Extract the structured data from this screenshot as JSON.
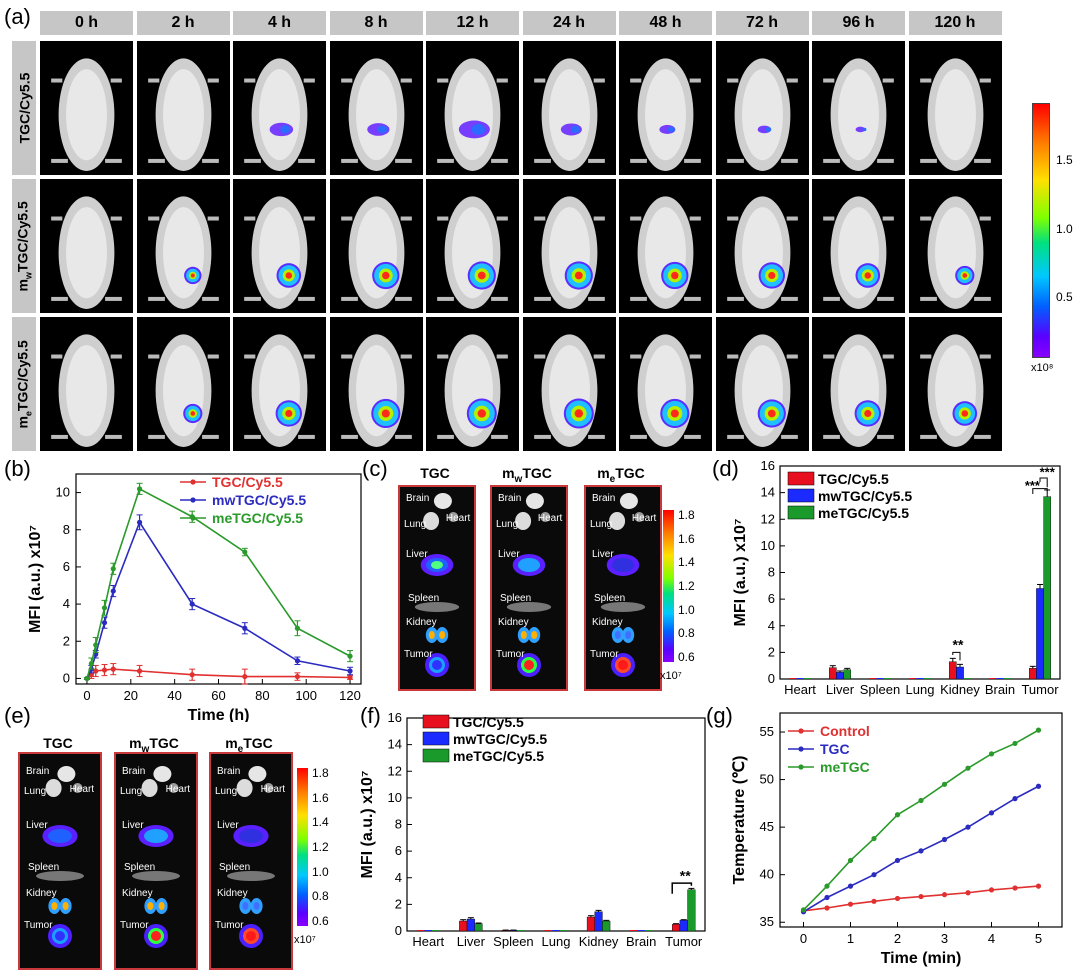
{
  "panel_a": {
    "label": "(a)",
    "times": [
      "0 h",
      "2 h",
      "4 h",
      "8 h",
      "12 h",
      "24 h",
      "48 h",
      "72 h",
      "96 h",
      "120 h"
    ],
    "rows": [
      {
        "label": "TGC/Cy5.5",
        "signal": [
          0,
          0,
          0.6,
          0.55,
          0.9,
          0.5,
          0.3,
          0.2,
          0.05,
          0
        ],
        "color": "#6a2cff"
      },
      {
        "label": "mwTGC/Cy5.5",
        "signal": [
          0,
          0.3,
          0.7,
          0.85,
          0.9,
          0.9,
          0.85,
          0.8,
          0.7,
          0.4
        ],
        "color": "#ff2a1a"
      },
      {
        "label": "meTGC/Cy5.5",
        "signal": [
          0,
          0.4,
          0.8,
          0.95,
          1,
          1,
          0.95,
          0.9,
          0.8,
          0.7
        ],
        "color": "#ff2a1a"
      }
    ],
    "colorbar": {
      "ticks": [
        "1.5",
        "1.0",
        "0.5"
      ],
      "unit": "x10⁸"
    }
  },
  "panel_b": {
    "label": "(b)",
    "chart_data": {
      "type": "line",
      "xlabel": "Time (h)",
      "ylabel": "MFI (a.u.) x10⁷",
      "xlim": [
        -5,
        125
      ],
      "ylim": [
        -0.3,
        11
      ],
      "xticks": [
        0,
        20,
        40,
        60,
        80,
        100,
        120
      ],
      "yticks": [
        0,
        2,
        4,
        6,
        8,
        10
      ],
      "series": [
        {
          "name": "TGC/Cy5.5",
          "color": "#e03030",
          "x": [
            0,
            2,
            4,
            8,
            12,
            24,
            48,
            72,
            96,
            120
          ],
          "y": [
            0,
            0.2,
            0.4,
            0.45,
            0.5,
            0.4,
            0.2,
            0.1,
            0.1,
            0.05
          ],
          "err": [
            0.05,
            0.2,
            0.3,
            0.3,
            0.3,
            0.3,
            0.3,
            0.4,
            0.2,
            0.1
          ]
        },
        {
          "name": "mwTGC/Cy5.5",
          "color": "#2b2bc0",
          "x": [
            0,
            2,
            4,
            8,
            12,
            24,
            48,
            72,
            96,
            120
          ],
          "y": [
            0,
            0.5,
            1.3,
            3.0,
            4.7,
            8.4,
            4.0,
            2.7,
            0.95,
            0.4
          ],
          "err": [
            0.05,
            0.2,
            0.2,
            0.3,
            0.3,
            0.4,
            0.3,
            0.3,
            0.2,
            0.2
          ]
        },
        {
          "name": "meTGC/Cy5.5",
          "color": "#2a9a2a",
          "x": [
            0,
            2,
            4,
            8,
            12,
            24,
            48,
            72,
            96,
            120
          ],
          "y": [
            0,
            0.8,
            1.8,
            3.8,
            5.9,
            10.2,
            8.7,
            6.8,
            2.7,
            1.2
          ],
          "err": [
            0.05,
            0.3,
            0.4,
            0.4,
            0.3,
            0.3,
            0.3,
            0.2,
            0.4,
            0.3
          ]
        }
      ]
    }
  },
  "panel_c": {
    "label": "(c)",
    "groups": [
      "TGC",
      "mwTGC",
      "meTGC"
    ],
    "organs": [
      "Brain",
      "Lung",
      "Heart",
      "Liver",
      "Spleen",
      "Kidney",
      "Tumor"
    ],
    "colorbar": {
      "ticks": [
        "1.8",
        "1.6",
        "1.4",
        "1.2",
        "1.0",
        "0.8",
        "0.6"
      ],
      "unit": "x10⁷"
    }
  },
  "panel_d": {
    "label": "(d)",
    "chart_data": {
      "type": "bar",
      "categories": [
        "Heart",
        "Liver",
        "Spleen",
        "Lung",
        "Kidney",
        "Brain",
        "Tumor"
      ],
      "ylabel": "MFI (a.u.) x10⁷",
      "ylim": [
        0,
        16
      ],
      "yticks": [
        0,
        2,
        4,
        6,
        8,
        10,
        12,
        14,
        16
      ],
      "series": [
        {
          "name": "TGC/Cy5.5",
          "color": "#e8101e",
          "values": [
            0,
            0.85,
            0,
            0,
            1.3,
            0,
            0.8
          ],
          "err": [
            0,
            0.15,
            0,
            0,
            0.25,
            0,
            0.15
          ]
        },
        {
          "name": "mwTGC/Cy5.5",
          "color": "#1b2bff",
          "values": [
            0,
            0.5,
            0,
            0,
            0.9,
            0,
            6.8
          ],
          "err": [
            0,
            0.1,
            0,
            0,
            0.2,
            0,
            0.3
          ]
        },
        {
          "name": "meTGC/Cy5.5",
          "color": "#1a9a2a",
          "values": [
            0,
            0.7,
            0,
            0,
            0,
            0,
            13.7
          ],
          "err": [
            0,
            0.1,
            0,
            0,
            0,
            0,
            0.5
          ]
        }
      ],
      "annotations": [
        "**",
        "***",
        "***"
      ]
    }
  },
  "panel_e": {
    "label": "(e)",
    "groups": [
      "TGC",
      "mwTGC",
      "meTGC"
    ],
    "organs": [
      "Brain",
      "Lung",
      "Heart",
      "Liver",
      "Spleen",
      "Kidney",
      "Tumor"
    ],
    "colorbar": {
      "ticks": [
        "1.8",
        "1.6",
        "1.4",
        "1.2",
        "1.0",
        "0.8",
        "0.6"
      ],
      "unit": "x10⁷"
    }
  },
  "panel_f": {
    "label": "(f)",
    "chart_data": {
      "type": "bar",
      "categories": [
        "Heart",
        "Liver",
        "Spleen",
        "Lung",
        "Kidney",
        "Brain",
        "Tumor"
      ],
      "ylabel": "MFI (a.u.) x10⁷",
      "ylim": [
        0,
        16
      ],
      "yticks": [
        0,
        2,
        4,
        6,
        8,
        10,
        12,
        14,
        16
      ],
      "series": [
        {
          "name": "TGC/Cy5.5",
          "color": "#e8101e",
          "values": [
            0,
            0.75,
            0.05,
            0,
            1.05,
            0,
            0.5
          ],
          "err": [
            0,
            0.1,
            0.02,
            0,
            0.1,
            0,
            0.05
          ]
        },
        {
          "name": "mwTGC/Cy5.5",
          "color": "#1b2bff",
          "values": [
            0,
            0.9,
            0.05,
            0,
            1.45,
            0,
            0.8
          ],
          "err": [
            0,
            0.1,
            0.02,
            0,
            0.1,
            0,
            0.05
          ]
        },
        {
          "name": "meTGC/Cy5.5",
          "color": "#1a9a2a",
          "values": [
            0,
            0.55,
            0,
            0,
            0.75,
            0,
            3.1
          ],
          "err": [
            0,
            0.05,
            0,
            0,
            0.05,
            0,
            0.1
          ]
        }
      ],
      "annotations": [
        "**"
      ]
    }
  },
  "panel_g": {
    "label": "(g)",
    "chart_data": {
      "type": "line",
      "xlabel": "Time (min)",
      "ylabel": "Temperature (℃)",
      "xlim": [
        -0.5,
        5.5
      ],
      "ylim": [
        34.5,
        57
      ],
      "xticks": [
        0,
        1,
        2,
        3,
        4,
        5
      ],
      "yticks": [
        35,
        40,
        45,
        50,
        55
      ],
      "series": [
        {
          "name": "Control",
          "color": "#e03030",
          "x": [
            0,
            0.5,
            1,
            1.5,
            2,
            2.5,
            3,
            3.5,
            4,
            4.5,
            5
          ],
          "y": [
            36.2,
            36.5,
            36.9,
            37.2,
            37.5,
            37.7,
            37.9,
            38.1,
            38.4,
            38.6,
            38.8
          ]
        },
        {
          "name": "TGC",
          "color": "#2b2bc0",
          "x": [
            0,
            0.5,
            1,
            1.5,
            2,
            2.5,
            3,
            3.5,
            4,
            4.5,
            5
          ],
          "y": [
            36.1,
            37.6,
            38.8,
            40.0,
            41.5,
            42.5,
            43.7,
            45.0,
            46.5,
            48.0,
            49.3
          ]
        },
        {
          "name": "meTGC",
          "color": "#2a9a2a",
          "x": [
            0,
            0.5,
            1,
            1.5,
            2,
            2.5,
            3,
            3.5,
            4,
            4.5,
            5
          ],
          "y": [
            36.3,
            38.8,
            41.5,
            43.8,
            46.3,
            47.8,
            49.5,
            51.2,
            52.7,
            53.8,
            55.2
          ]
        }
      ]
    }
  }
}
